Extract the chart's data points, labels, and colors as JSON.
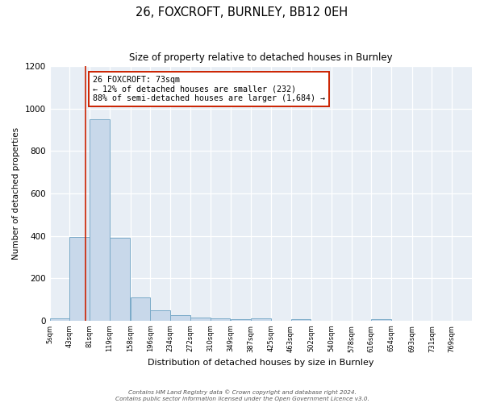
{
  "title": "26, FOXCROFT, BURNLEY, BB12 0EH",
  "subtitle": "Size of property relative to detached houses in Burnley",
  "xlabel": "Distribution of detached houses by size in Burnley",
  "ylabel": "Number of detached properties",
  "bin_labels": [
    "5sqm",
    "43sqm",
    "81sqm",
    "119sqm",
    "158sqm",
    "196sqm",
    "234sqm",
    "272sqm",
    "310sqm",
    "349sqm",
    "387sqm",
    "425sqm",
    "463sqm",
    "502sqm",
    "540sqm",
    "578sqm",
    "616sqm",
    "654sqm",
    "693sqm",
    "731sqm",
    "769sqm"
  ],
  "bin_edges": [
    5,
    43,
    81,
    119,
    158,
    196,
    234,
    272,
    310,
    349,
    387,
    425,
    463,
    502,
    540,
    578,
    616,
    654,
    693,
    731,
    769
  ],
  "bar_heights": [
    10,
    395,
    950,
    390,
    110,
    50,
    25,
    15,
    10,
    5,
    10,
    0,
    5,
    0,
    0,
    0,
    5,
    0,
    0,
    0,
    0
  ],
  "bar_color": "#c8d8ea",
  "bar_edge_color": "#7aaac8",
  "vline_x": 73,
  "vline_color": "#cc2200",
  "annotation_line1": "26 FOXCROFT: 73sqm",
  "annotation_line2": "← 12% of detached houses are smaller (232)",
  "annotation_line3": "88% of semi-detached houses are larger (1,684) →",
  "annotation_box_facecolor": "#ffffff",
  "annotation_box_edgecolor": "#cc2200",
  "ylim": [
    0,
    1200
  ],
  "yticks": [
    0,
    200,
    400,
    600,
    800,
    1000,
    1200
  ],
  "footer_line1": "Contains HM Land Registry data © Crown copyright and database right 2024.",
  "footer_line2": "Contains public sector information licensed under the Open Government Licence v3.0.",
  "fig_facecolor": "#ffffff",
  "plot_bg_color": "#e8eef5",
  "figsize": [
    6.0,
    5.0
  ],
  "dpi": 100
}
